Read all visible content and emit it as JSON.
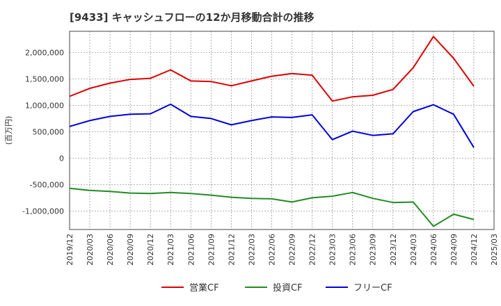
{
  "chart_data": {
    "type": "line",
    "title": "[9433]  キャッシュフローの12か月移動合計の推移",
    "ylabel": "(百万円)",
    "xlabel": "",
    "ylim": [
      -1350000,
      2400000
    ],
    "yticks": [
      -1000000,
      -500000,
      0,
      500000,
      1000000,
      1500000,
      2000000
    ],
    "ytick_labels": [
      "-1,000,000",
      "-500,000",
      "0",
      "500,000",
      "1,000,000",
      "1,500,000",
      "2,000,000"
    ],
    "xticks": [
      "2019/12",
      "2020/03",
      "2020/06",
      "2020/09",
      "2020/12",
      "2021/03",
      "2021/06",
      "2021/09",
      "2021/12",
      "2022/03",
      "2022/06",
      "2022/09",
      "2022/12",
      "2023/03",
      "2023/06",
      "2023/09",
      "2023/12",
      "2024/03",
      "2024/06",
      "2024/09",
      "2024/12",
      "2025/03"
    ],
    "grid": true,
    "legend_position": "bottom",
    "series": [
      {
        "name": "営業CF",
        "color": "#dd0000",
        "values": [
          1170000,
          1320000,
          1420000,
          1490000,
          1510000,
          1670000,
          1460000,
          1450000,
          1370000,
          1460000,
          1550000,
          1600000,
          1570000,
          1080000,
          1160000,
          1190000,
          1300000,
          1710000,
          2300000,
          1890000,
          1360000
        ]
      },
      {
        "name": "投資CF",
        "color": "#228b22",
        "values": [
          -570000,
          -610000,
          -630000,
          -660000,
          -670000,
          -650000,
          -670000,
          -700000,
          -740000,
          -760000,
          -770000,
          -830000,
          -750000,
          -720000,
          -650000,
          -760000,
          -840000,
          -830000,
          -1290000,
          -1060000,
          -1160000
        ]
      },
      {
        "name": "フリーCF",
        "color": "#0000dd",
        "values": [
          600000,
          710000,
          790000,
          830000,
          840000,
          1020000,
          790000,
          750000,
          630000,
          710000,
          780000,
          770000,
          820000,
          350000,
          510000,
          430000,
          460000,
          880000,
          1010000,
          830000,
          200000
        ]
      }
    ]
  }
}
